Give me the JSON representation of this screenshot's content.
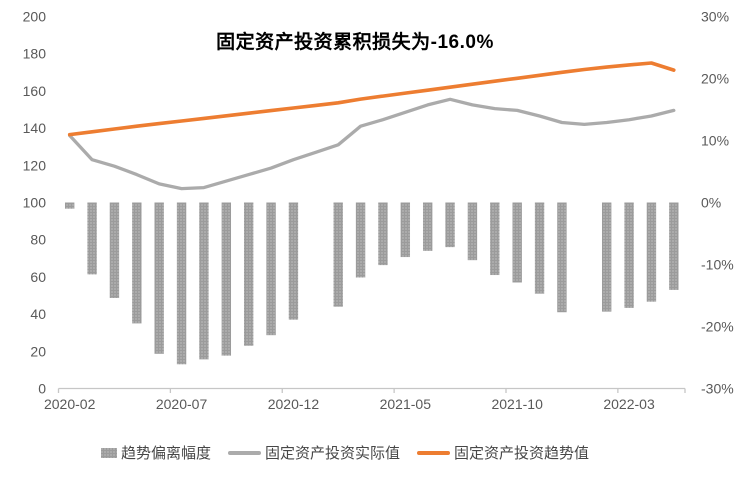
{
  "chart_data": {
    "type": "combo-bar-line",
    "title": "固定资产投资累积损失为-16.0%",
    "categories": [
      "2020-02",
      "2020-03",
      "2020-04",
      "2020-05",
      "2020-06",
      "2020-07",
      "2020-08",
      "2020-09",
      "2020-10",
      "2020-11",
      "2020-12",
      "2021-01",
      "2021-02",
      "2021-03",
      "2021-04",
      "2021-05",
      "2021-06",
      "2021-07",
      "2021-08",
      "2021-09",
      "2021-10",
      "2021-11",
      "2021-12",
      "2022-01",
      "2022-02",
      "2022-03",
      "2022-04",
      "2022-05"
    ],
    "x_tick_labels": [
      "2020-02",
      "2020-07",
      "2020-12",
      "2021-05",
      "2021-10",
      "2022-03"
    ],
    "x_tick_indices": [
      0,
      5,
      10,
      15,
      20,
      25
    ],
    "left_axis": {
      "min": 0,
      "max": 200,
      "tick_labels": [
        "200",
        "180",
        "160",
        "140",
        "120",
        "100",
        "80",
        "60",
        "40",
        "20",
        "0"
      ],
      "tick_values": [
        200,
        180,
        160,
        140,
        120,
        100,
        80,
        60,
        40,
        20,
        0
      ]
    },
    "right_axis": {
      "min": -30,
      "max": 30,
      "tick_labels": [
        "30%",
        "20%",
        "10%",
        "0%",
        "-10%",
        "-20%",
        "-30%"
      ],
      "tick_values": [
        30,
        20,
        10,
        0,
        -10,
        -20,
        -30
      ]
    },
    "series": [
      {
        "name": "趋势偏离幅度",
        "type": "bar",
        "axis": "right",
        "color": "#9B9B9B",
        "pattern_dot_color": "#CDCDCD",
        "values": [
          -1.0,
          -11.6,
          -15.4,
          -19.5,
          -24.4,
          -26.1,
          -25.3,
          -24.7,
          -23.1,
          -21.4,
          -18.9,
          null,
          -16.8,
          -12.1,
          -10.1,
          -8.8,
          -7.8,
          -7.2,
          -9.3,
          -11.7,
          -12.9,
          -14.7,
          -17.7,
          null,
          -17.6,
          -17.0,
          -16.0,
          -14.1
        ]
      },
      {
        "name": "固定资产投资实际值",
        "type": "line",
        "axis": "left",
        "color": "#ABABAB",
        "values": [
          136,
          123,
          119.5,
          115,
          110,
          107.5,
          108,
          111.5,
          115,
          118.5,
          123,
          127,
          131,
          141,
          144.5,
          148.5,
          152.5,
          155.5,
          152.5,
          150.5,
          149.5,
          146.5,
          143,
          142,
          143,
          144.5,
          146.5,
          149.5
        ]
      },
      {
        "name": "固定资产投资趋势值",
        "type": "line",
        "axis": "left",
        "color": "#ED7D31",
        "values": [
          136.5,
          138,
          139.5,
          141,
          142.4,
          143.8,
          145.2,
          146.6,
          148,
          149.4,
          150.8,
          152.2,
          153.6,
          155.6,
          157.2,
          158.8,
          160.4,
          162,
          163.6,
          165.2,
          166.8,
          168.4,
          170,
          171.5,
          172.8,
          174,
          175,
          171.2
        ]
      }
    ],
    "legend_position": "bottom",
    "grid": false,
    "axis_text_color": "#595959",
    "axis_line_color": "#C6C6C6",
    "background_color": "#ffffff"
  }
}
